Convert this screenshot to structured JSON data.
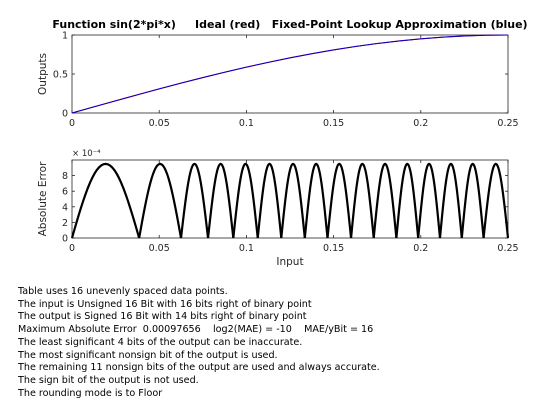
{
  "chart_data": [
    {
      "type": "line",
      "title": "Function sin(2*pi*x)     Ideal (red)   Fixed-Point Lookup Approximation (blue)",
      "xlabel": "",
      "ylabel": "Outputs",
      "xlim": [
        0,
        0.25
      ],
      "ylim": [
        0,
        1
      ],
      "xticks": [
        "0",
        "0.05",
        "0.1",
        "0.15",
        "0.2",
        "0.25"
      ],
      "yticks": [
        "0",
        "0.5",
        "1"
      ],
      "grid": false,
      "series": [
        {
          "color": "#ff0000",
          "x": [
            0,
            0.0125,
            0.025,
            0.0375,
            0.05,
            0.0625,
            0.075,
            0.0875,
            0.1,
            0.1125,
            0.125,
            0.1375,
            0.15,
            0.1625,
            0.175,
            0.1875,
            0.2,
            0.2125,
            0.225,
            0.2375,
            0.25
          ],
          "values": [
            0,
            0.0785,
            0.1564,
            0.2334,
            0.309,
            0.3827,
            0.454,
            0.5225,
            0.5878,
            0.6494,
            0.7071,
            0.7604,
            0.809,
            0.8526,
            0.891,
            0.9239,
            0.9511,
            0.9724,
            0.9877,
            0.9969,
            1
          ]
        },
        {
          "color": "#0000cc",
          "x": [
            0,
            0.0125,
            0.025,
            0.0375,
            0.05,
            0.0625,
            0.075,
            0.0875,
            0.1,
            0.1125,
            0.125,
            0.1375,
            0.15,
            0.1625,
            0.175,
            0.1875,
            0.2,
            0.2125,
            0.225,
            0.2375,
            0.25
          ],
          "values": [
            0,
            0.0781,
            0.1561,
            0.2332,
            0.3088,
            0.3824,
            0.4538,
            0.5222,
            0.5876,
            0.6492,
            0.7068,
            0.7601,
            0.8087,
            0.8524,
            0.8908,
            0.9237,
            0.9508,
            0.9722,
            0.9875,
            0.9967,
            0.9999
          ]
        }
      ]
    },
    {
      "type": "line",
      "title": "",
      "xlabel": "Input",
      "ylabel": "Absolute Error",
      "xlim": [
        0,
        0.25
      ],
      "ylim": [
        0,
        0.001
      ],
      "y_exponent_label": "× 10⁻⁴",
      "xticks": [
        "0",
        "0.05",
        "0.1",
        "0.15",
        "0.2",
        "0.25"
      ],
      "yticks": [
        "0",
        "2",
        "4",
        "6",
        "8"
      ],
      "grid": false,
      "series": [
        {
          "color": "#000000",
          "segments": [
            [
              0,
              0.0385
            ],
            [
              0.0385,
              0.0625
            ],
            [
              0.0625,
              0.078
            ],
            [
              0.078,
              0.0925
            ],
            [
              0.0925,
              0.1065
            ],
            [
              0.1065,
              0.12
            ],
            [
              0.12,
              0.1335
            ],
            [
              0.1335,
              0.1465
            ],
            [
              0.1465,
              0.16
            ],
            [
              0.16,
              0.173
            ],
            [
              0.173,
              0.186
            ],
            [
              0.186,
              0.1985
            ],
            [
              0.1985,
              0.211
            ],
            [
              0.211,
              0.2235
            ],
            [
              0.2235,
              0.236
            ],
            [
              0.236,
              0.25
            ]
          ],
          "peak": 0.00095,
          "note": "Error arcs rise from ~0 at each breakpoint to ~9.5e-4 at segment midpoints"
        }
      ]
    }
  ],
  "report": {
    "lines": [
      "Table uses 16 unevenly spaced data points.",
      "The input is Unsigned 16 Bit with 16 bits right of binary point",
      "The output is Signed 16 Bit with 14 bits right of binary point",
      "Maximum Absolute Error  0.00097656    log2(MAE) = -10    MAE/yBit = 16",
      "The least significant 4 bits of the output can be inaccurate.",
      "The most significant nonsign bit of the output is used.",
      "The remaining 11 nonsign bits of the output are used and always accurate.",
      "The sign bit of the output is not used.",
      "The rounding mode is to Floor"
    ]
  }
}
